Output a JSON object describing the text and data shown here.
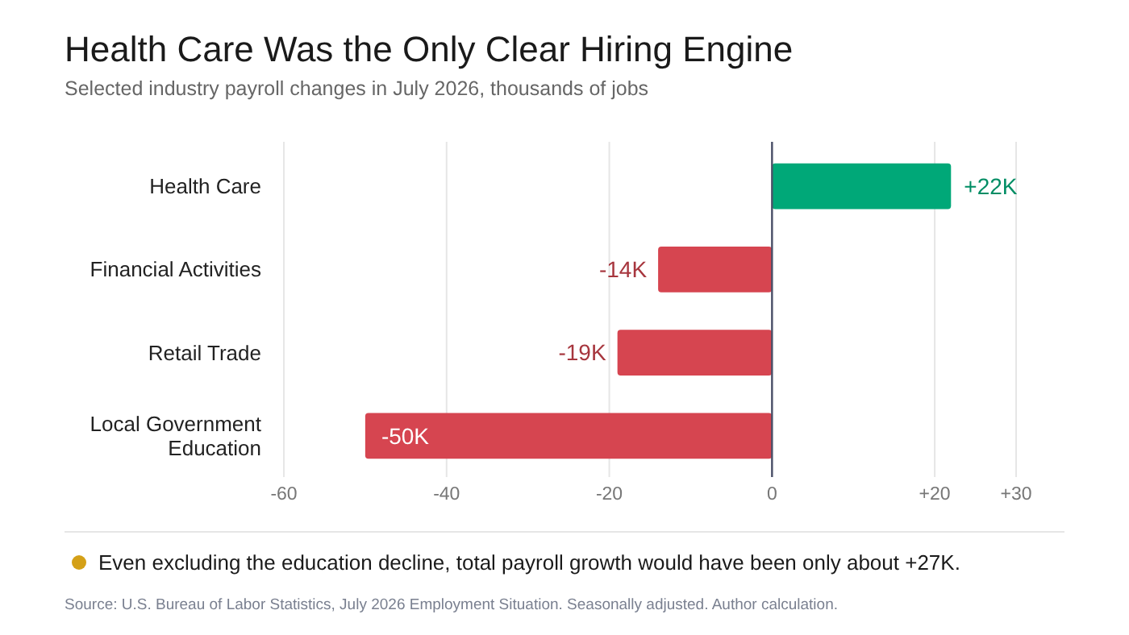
{
  "chart_data": {
    "type": "bar",
    "orientation": "horizontal",
    "title": "Health Care Was the Only Clear Hiring Engine",
    "subtitle": "Selected industry payroll changes in July 2026, thousands of jobs",
    "categories": [
      "Health Care",
      "Financial Activities",
      "Retail Trade",
      "Local Government Education"
    ],
    "values": [
      22,
      -14,
      -19,
      -50
    ],
    "colors": [
      "#00a878",
      "#d64550",
      "#d64550",
      "#d64550"
    ],
    "value_labels": [
      "+22K",
      "-14K",
      "-19K",
      "-50K"
    ],
    "xlim": [
      -60,
      30
    ],
    "xticks": [
      -60,
      -40,
      -20,
      0,
      {
        "value": 20,
        "label": "+20"
      },
      {
        "value": 30,
        "label": "+30"
      }
    ],
    "grid": "x",
    "annotations": [
      "Even excluding the education decline, total payroll growth would have been only about +27K.",
      "Source: U.S. Bureau of Labor Statistics, July 2026 Employment Situation. Seasonally adjusted. Author calculation."
    ]
  }
}
